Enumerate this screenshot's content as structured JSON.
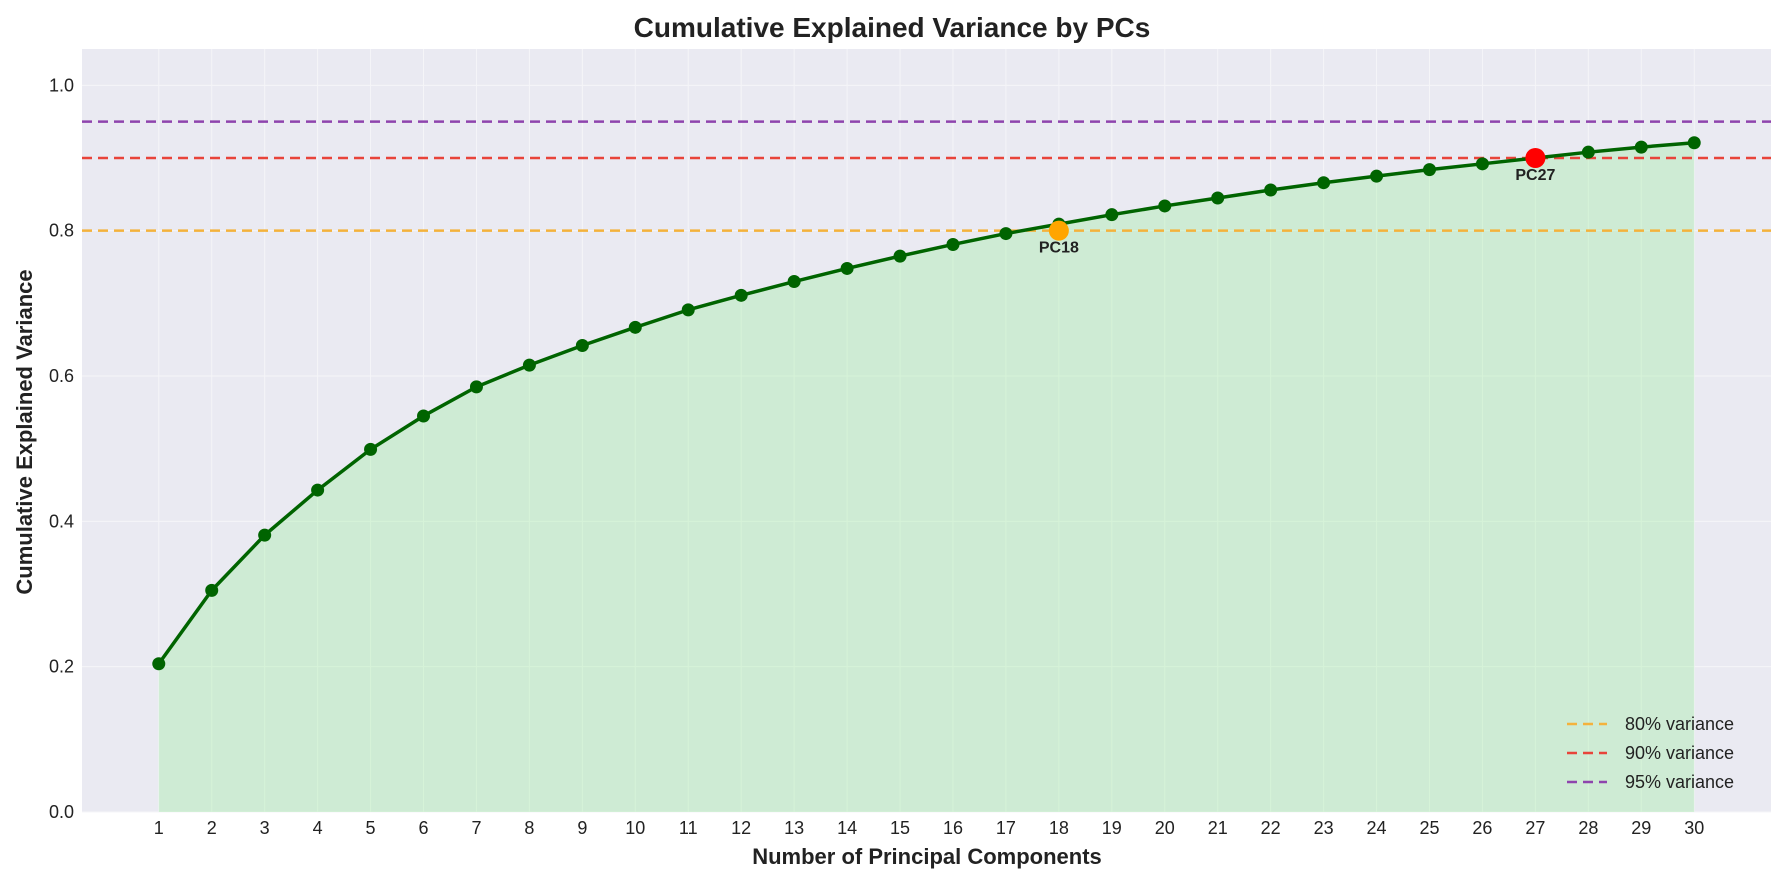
{
  "chart_data": {
    "type": "line",
    "title": "Cumulative Explained Variance by PCs",
    "xlabel": "Number of Principal Components",
    "ylabel": "Cumulative Explained Variance",
    "x": [
      1,
      2,
      3,
      4,
      5,
      6,
      7,
      8,
      9,
      10,
      11,
      12,
      13,
      14,
      15,
      16,
      17,
      18,
      19,
      20,
      21,
      22,
      23,
      24,
      25,
      26,
      27,
      28,
      29,
      30
    ],
    "x_tick_labels": [
      "1",
      "2",
      "3",
      "4",
      "5",
      "6",
      "7",
      "8",
      "9",
      "10",
      "11",
      "12",
      "13",
      "14",
      "15",
      "16",
      "17",
      "18",
      "19",
      "20",
      "21",
      "22",
      "23",
      "24",
      "25",
      "26",
      "27",
      "28",
      "29",
      "30"
    ],
    "xlim": [
      -0.45,
      31.45
    ],
    "ylim": [
      0.0,
      1.05
    ],
    "y_ticks": [
      0.0,
      0.2,
      0.4,
      0.6,
      0.8,
      1.0
    ],
    "y_tick_labels": [
      "0.0",
      "0.2",
      "0.4",
      "0.6",
      "0.8",
      "1.0"
    ],
    "grid": true,
    "series": [
      {
        "values": [
          0.204,
          0.305,
          0.381,
          0.443,
          0.499,
          0.545,
          0.585,
          0.615,
          0.642,
          0.667,
          0.691,
          0.711,
          0.73,
          0.748,
          0.765,
          0.781,
          0.796,
          0.809,
          0.822,
          0.834,
          0.845,
          0.856,
          0.866,
          0.875,
          0.884,
          0.892,
          0.9,
          0.908,
          0.915,
          0.921
        ],
        "color": "#006400",
        "fill_color": "#90ee90"
      }
    ],
    "thresholds": [
      {
        "value": 0.8,
        "label": "80% variance",
        "color": "#f4b23c"
      },
      {
        "value": 0.9,
        "label": "90% variance",
        "color": "#e8443a"
      },
      {
        "value": 0.95,
        "label": "95% variance",
        "color": "#8e44ad"
      }
    ],
    "markers": [
      {
        "x": 18,
        "y": 0.8,
        "label": "PC18",
        "color": "#ffa500"
      },
      {
        "x": 27,
        "y": 0.9,
        "label": "PC27",
        "color": "#ff0000"
      }
    ],
    "legend_position": "lower-right",
    "colors": {
      "plot_background": "#eaeaf2",
      "grid": "#f5f5f8",
      "text": "#222222"
    }
  }
}
